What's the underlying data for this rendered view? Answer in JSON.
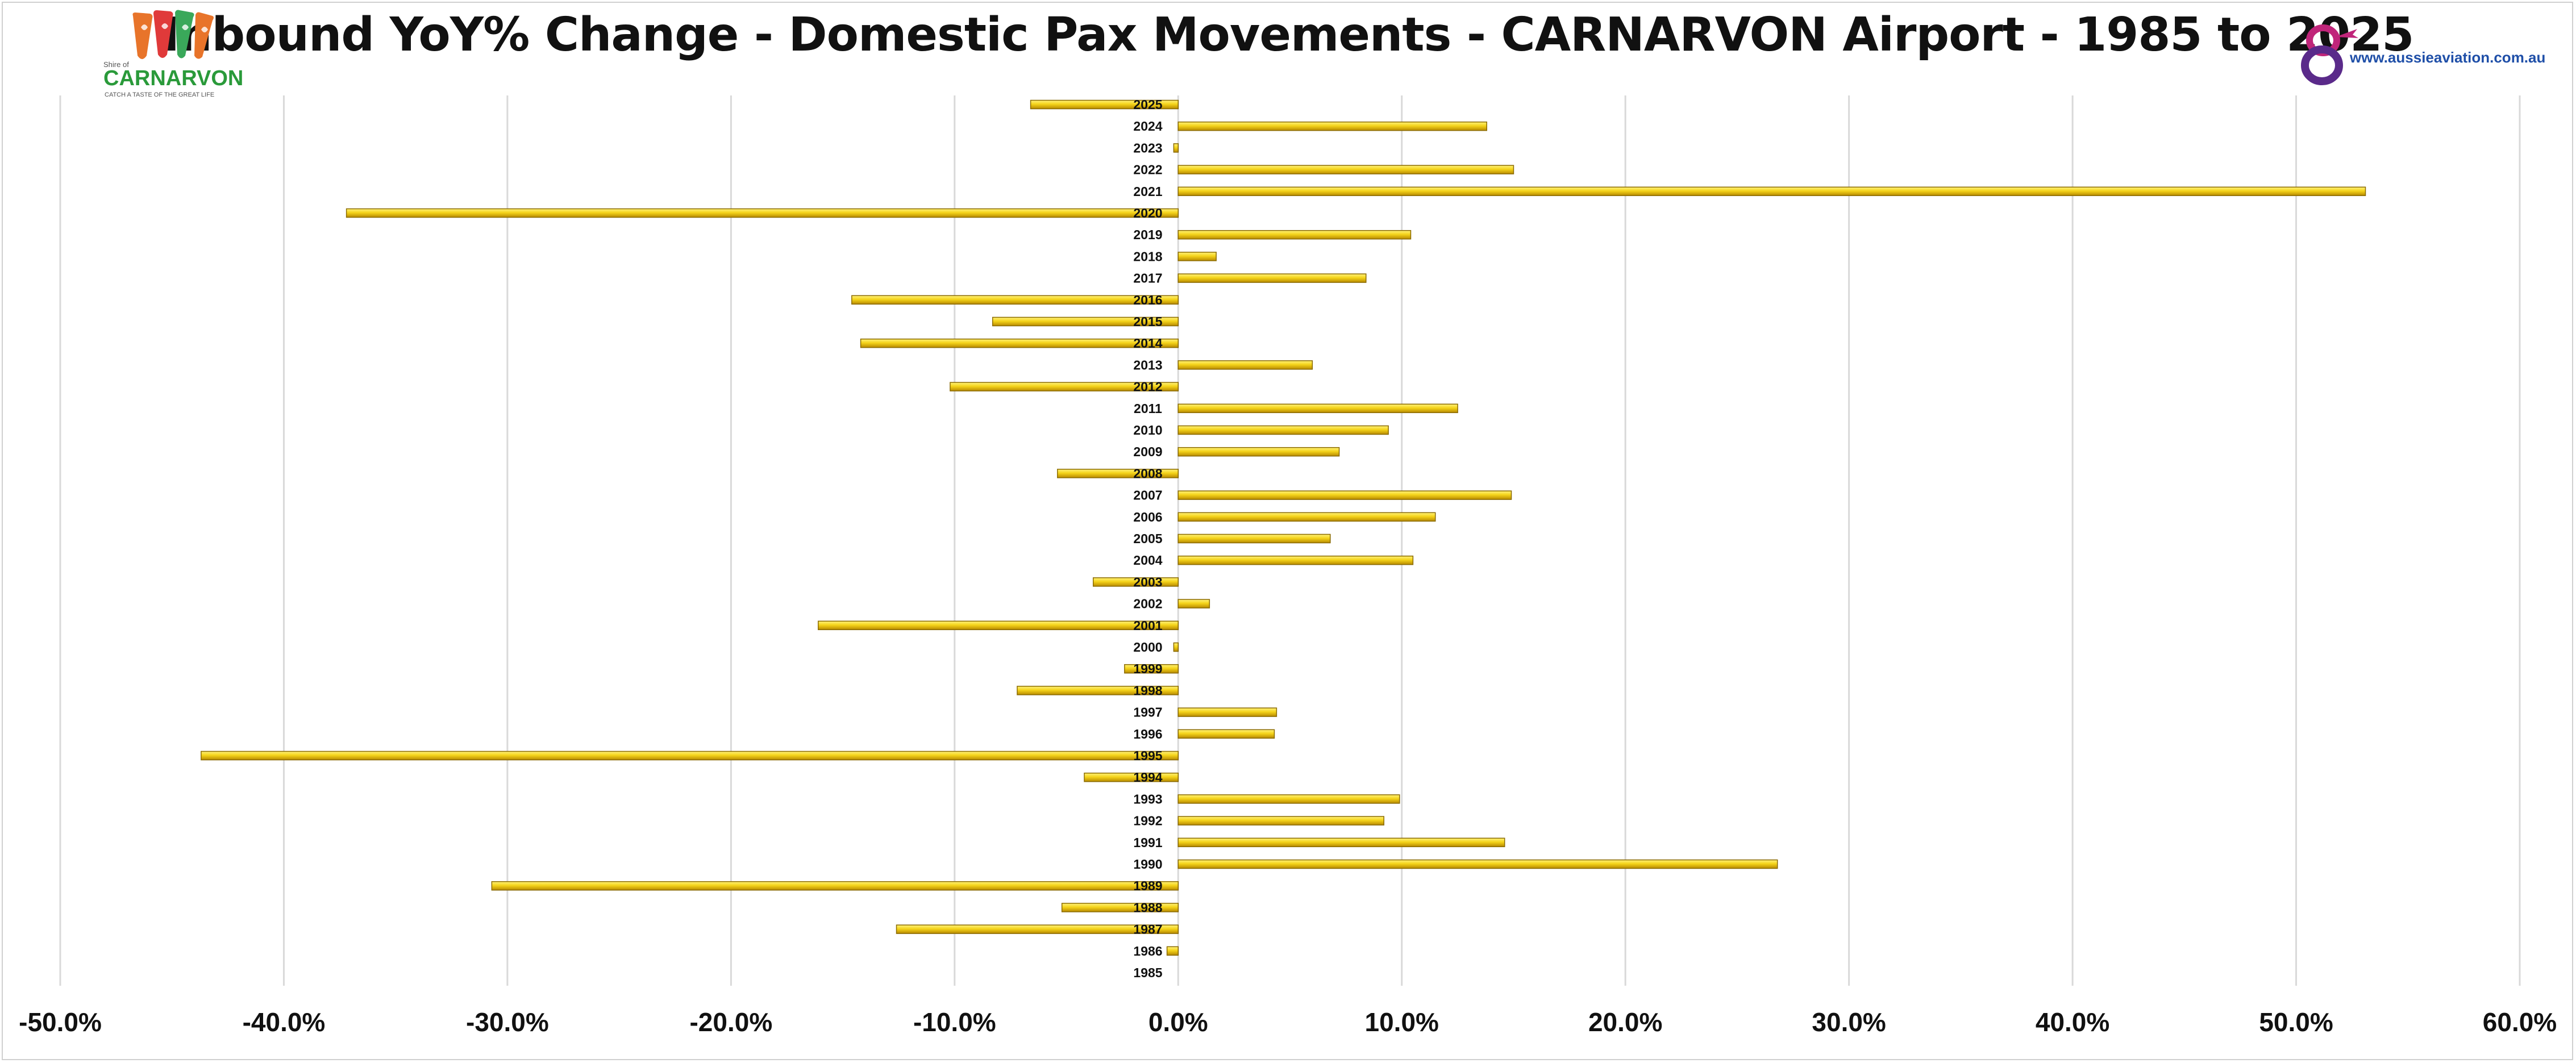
{
  "chart_data": {
    "type": "bar",
    "orientation": "horizontal",
    "title": "Inbound YoY% Change - Domestic Pax Movements - CARNARVON Airport - 1985 to 2025",
    "xlabel": "",
    "ylabel": "",
    "xlim": [
      -0.5,
      0.6
    ],
    "x_ticks": [
      -0.5,
      -0.4,
      -0.3,
      -0.2,
      -0.1,
      0.0,
      0.1,
      0.2,
      0.3,
      0.4,
      0.5,
      0.6
    ],
    "x_tick_labels": [
      "-50.0%",
      "-40.0%",
      "-30.0%",
      "-20.0%",
      "-10.0%",
      "0.0%",
      "10.0%",
      "20.0%",
      "30.0%",
      "40.0%",
      "50.0%",
      "60.0%"
    ],
    "grid": true,
    "bar_color": "#f2d21b",
    "bar_edge_color": "#8a6a00",
    "categories": [
      "1985",
      "1986",
      "1987",
      "1988",
      "1989",
      "1990",
      "1991",
      "1992",
      "1993",
      "1994",
      "1995",
      "1996",
      "1997",
      "1998",
      "1999",
      "2000",
      "2001",
      "2002",
      "2003",
      "2004",
      "2005",
      "2006",
      "2007",
      "2008",
      "2009",
      "2010",
      "2011",
      "2012",
      "2013",
      "2014",
      "2015",
      "2016",
      "2017",
      "2018",
      "2019",
      "2020",
      "2021",
      "2022",
      "2023",
      "2024",
      "2025"
    ],
    "values": [
      0.0,
      -0.005,
      -0.126,
      -0.052,
      -0.307,
      0.268,
      0.146,
      0.092,
      0.099,
      -0.042,
      -0.437,
      0.043,
      0.044,
      -0.072,
      -0.024,
      -0.002,
      -0.161,
      0.014,
      -0.038,
      0.105,
      0.068,
      0.115,
      0.149,
      -0.054,
      0.072,
      0.094,
      0.125,
      -0.102,
      0.06,
      -0.142,
      -0.083,
      -0.146,
      0.084,
      0.017,
      0.104,
      -0.372,
      0.531,
      0.15,
      -0.002,
      0.138,
      -0.066
    ]
  },
  "logos": {
    "left_logo_top": "Shire of",
    "left_logo_name": "CARNARVON",
    "left_logo_tagline": "CATCH A TASTE OF THE GREAT LIFE",
    "right_logo_url": "www.aussieaviation.com.au"
  }
}
